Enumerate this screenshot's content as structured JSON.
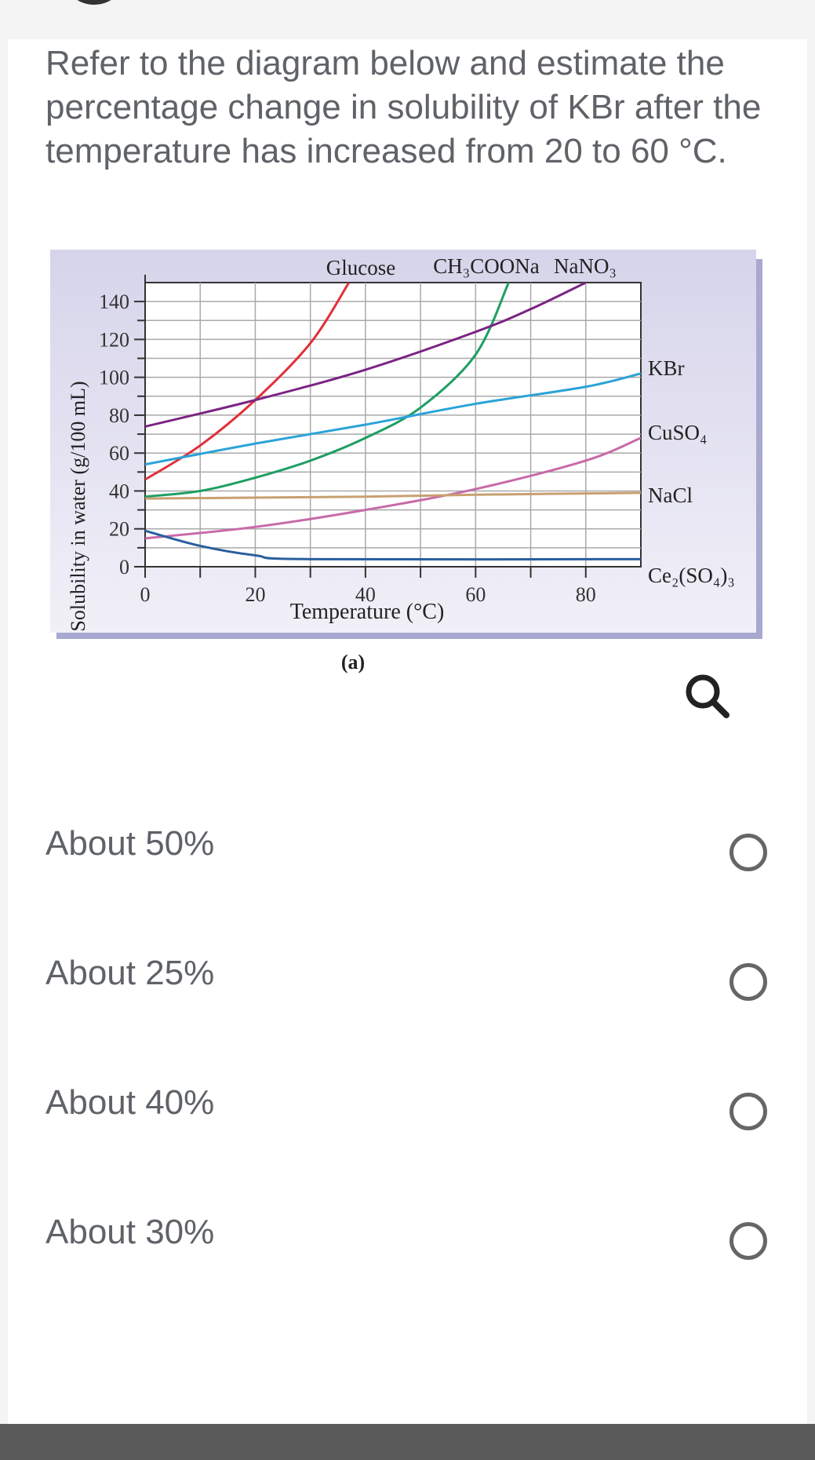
{
  "question": {
    "text": "Refer to the diagram below and estimate the percentage change in solubility of KBr after the temperature has increased from 20 to 60 °C."
  },
  "chart_data": {
    "type": "line",
    "xlabel": "Temperature (°C)",
    "ylabel": "Solubility in water (g/100 mL)",
    "xlim": [
      0,
      90
    ],
    "ylim": [
      0,
      150
    ],
    "x_ticks": [
      "0",
      "20",
      "40",
      "60",
      "80"
    ],
    "y_ticks": [
      "0",
      "20",
      "40",
      "60",
      "80",
      "100",
      "120",
      "140"
    ],
    "grid": true,
    "caption": "(a)",
    "series": [
      {
        "name": "Glucose",
        "color": "#e0303a",
        "points": [
          [
            0,
            46
          ],
          [
            10,
            64
          ],
          [
            20,
            88
          ],
          [
            30,
            118
          ],
          [
            37,
            150
          ]
        ]
      },
      {
        "name": "CH₃COONa",
        "color": "#1e9e63",
        "points": [
          [
            0,
            37
          ],
          [
            10,
            40
          ],
          [
            20,
            47
          ],
          [
            30,
            56
          ],
          [
            40,
            68
          ],
          [
            50,
            84
          ],
          [
            60,
            112
          ],
          [
            66,
            150
          ]
        ]
      },
      {
        "name": "NaNO₃",
        "color": "#7b2483",
        "points": [
          [
            0,
            74
          ],
          [
            20,
            88
          ],
          [
            40,
            104
          ],
          [
            60,
            124
          ],
          [
            70,
            136
          ],
          [
            80,
            150
          ]
        ]
      },
      {
        "name": "KBr",
        "color": "#2aa3d8",
        "points": [
          [
            0,
            54
          ],
          [
            20,
            65
          ],
          [
            40,
            75
          ],
          [
            60,
            86
          ],
          [
            80,
            95
          ],
          [
            90,
            102
          ]
        ]
      },
      {
        "name": "CuSO₄",
        "color": "#c86aa9",
        "points": [
          [
            0,
            15
          ],
          [
            20,
            21
          ],
          [
            40,
            30
          ],
          [
            60,
            41
          ],
          [
            80,
            56
          ],
          [
            90,
            68
          ]
        ]
      },
      {
        "name": "NaCl",
        "color": "#c8a070",
        "points": [
          [
            0,
            36
          ],
          [
            40,
            37
          ],
          [
            60,
            38
          ],
          [
            90,
            39
          ]
        ]
      },
      {
        "name": "Ce₂(SO₄)₃",
        "color": "#2a5f9e",
        "points": [
          [
            0,
            19
          ],
          [
            10,
            11
          ],
          [
            20,
            6
          ],
          [
            30,
            4
          ],
          [
            90,
            4
          ]
        ]
      }
    ]
  },
  "options": [
    {
      "label": "About 50%"
    },
    {
      "label": "About 25%"
    },
    {
      "label": "About 40%"
    },
    {
      "label": "About 30%"
    }
  ],
  "icons": {
    "zoom": "magnifier-icon",
    "radio": "radio-unselected-icon"
  }
}
